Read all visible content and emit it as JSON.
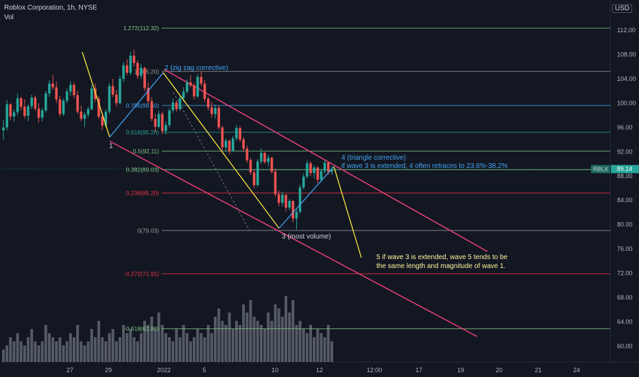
{
  "header": {
    "symbol_title": "Roblox Corporation, 1h, NYSE",
    "volume_label": "Vol",
    "currency": "USD"
  },
  "chart_data": {
    "type": "candlestick",
    "symbol": "RBLX",
    "last_price": "89.14",
    "price_axis": {
      "min": 58,
      "max": 118,
      "ticks": [
        "60.00",
        "64.00",
        "68.00",
        "72.00",
        "76.00",
        "80.00",
        "84.00",
        "88.00",
        "92.00",
        "96.00",
        "100.00",
        "104.00",
        "108.00",
        "112.00"
      ]
    },
    "time_axis": {
      "ticks": [
        "27",
        "29",
        "2022",
        "5",
        "10",
        "12",
        "12:00",
        "17",
        "19",
        "20",
        "21",
        "24"
      ]
    },
    "fib_levels": [
      {
        "label": "1.272(112.32)",
        "price": 112.32,
        "color": "#81c784"
      },
      {
        "label": "1(105.20)",
        "price": 105.2,
        "color": "#9e9e9e"
      },
      {
        "label": "0.786(99.60)",
        "price": 99.6,
        "color": "#42a5f5"
      },
      {
        "label": "0.618(95.20)",
        "price": 95.2,
        "color": "#26a69a"
      },
      {
        "label": "0.5(92.11)",
        "price": 92.11,
        "color": "#81c784"
      },
      {
        "label": "0.382(89.03)",
        "price": 89.03,
        "color": "#81c784"
      },
      {
        "label": "0.236(85.20)",
        "price": 85.2,
        "color": "#f23645"
      },
      {
        "label": "0(79.03)",
        "price": 79.03,
        "color": "#9e9e9e"
      },
      {
        "label": "-0.272(71.91)",
        "price": 71.91,
        "color": "#f23645"
      },
      {
        "label": "-0.618(62.86)",
        "price": 62.86,
        "color": "#81c784"
      }
    ],
    "annotations": {
      "wave1": "1",
      "wave2": "2 (zig zag corrective)",
      "wave3": "3 (most volume)",
      "wave4_line1": "4 (triangle corrective)",
      "wave4_line2": "if wave 3 is extended, 4 often retraces to 23.6%-38.2%",
      "wave5_line1": "5 if wave 3 is extended, wave 5 tends to be",
      "wave5_line2": "the same length and magnitude of wave 1."
    },
    "candles": [
      [
        95.5,
        97.2,
        94.0,
        96.0
      ],
      [
        96.0,
        100.5,
        95.5,
        99.8
      ],
      [
        99.8,
        100.0,
        97.2,
        97.8
      ],
      [
        97.8,
        99.0,
        97.0,
        98.5
      ],
      [
        98.5,
        101.5,
        98.0,
        100.8
      ],
      [
        100.8,
        101.0,
        98.8,
        99.4
      ],
      [
        99.4,
        100.6,
        97.5,
        97.9
      ],
      [
        97.9,
        99.8,
        97.0,
        99.5
      ],
      [
        99.5,
        101.4,
        99.0,
        100.9
      ],
      [
        100.9,
        101.2,
        98.7,
        99.1
      ],
      [
        99.1,
        100.0,
        96.8,
        97.6
      ],
      [
        97.6,
        99.2,
        97.0,
        98.8
      ],
      [
        98.8,
        102.0,
        98.5,
        101.6
      ],
      [
        101.6,
        103.8,
        101.0,
        103.2
      ],
      [
        103.2,
        104.6,
        102.2,
        102.6
      ],
      [
        102.6,
        103.5,
        100.0,
        100.6
      ],
      [
        100.6,
        101.2,
        97.8,
        98.2
      ],
      [
        98.2,
        100.8,
        97.9,
        100.4
      ],
      [
        100.4,
        102.4,
        100.0,
        101.9
      ],
      [
        101.9,
        103.6,
        101.2,
        103.0
      ],
      [
        103.0,
        103.4,
        100.8,
        101.3
      ],
      [
        101.3,
        102.0,
        98.2,
        98.6
      ],
      [
        98.6,
        99.6,
        97.0,
        97.4
      ],
      [
        97.4,
        98.5,
        96.0,
        98.1
      ],
      [
        98.1,
        99.4,
        97.6,
        99.0
      ],
      [
        99.0,
        103.0,
        98.8,
        102.4
      ],
      [
        102.4,
        103.2,
        100.2,
        100.7
      ],
      [
        100.7,
        101.2,
        97.4,
        97.8
      ],
      [
        97.8,
        98.4,
        95.6,
        96.3
      ],
      [
        96.3,
        99.0,
        96.0,
        98.6
      ],
      [
        98.6,
        103.3,
        98.2,
        102.8
      ],
      [
        102.8,
        104.0,
        101.0,
        101.4
      ],
      [
        101.4,
        102.2,
        99.5,
        100.0
      ],
      [
        100.0,
        104.5,
        99.8,
        104.0
      ],
      [
        104.0,
        106.8,
        103.5,
        106.2
      ],
      [
        106.2,
        107.2,
        104.6,
        105.0
      ],
      [
        105.0,
        108.5,
        104.6,
        107.8
      ],
      [
        107.8,
        108.8,
        106.0,
        106.6
      ],
      [
        106.6,
        107.0,
        104.0,
        104.5
      ],
      [
        104.5,
        106.4,
        104.0,
        105.8
      ],
      [
        105.8,
        106.0,
        102.0,
        102.5
      ],
      [
        102.5,
        103.4,
        99.8,
        100.3
      ],
      [
        100.3,
        101.0,
        97.0,
        97.4
      ],
      [
        97.4,
        98.2,
        95.2,
        96.1
      ],
      [
        96.1,
        98.8,
        95.8,
        98.2
      ],
      [
        98.2,
        98.6,
        94.9,
        95.4
      ],
      [
        95.4,
        97.0,
        94.8,
        96.4
      ],
      [
        96.4,
        99.2,
        96.0,
        98.8
      ],
      [
        98.8,
        100.8,
        98.4,
        100.1
      ],
      [
        100.1,
        100.4,
        98.6,
        99.0
      ],
      [
        99.0,
        101.2,
        98.7,
        100.8
      ],
      [
        100.8,
        102.6,
        100.2,
        101.9
      ],
      [
        101.9,
        103.9,
        101.6,
        103.4
      ],
      [
        103.4,
        104.6,
        102.6,
        102.9
      ],
      [
        102.9,
        103.3,
        100.6,
        101.1
      ],
      [
        101.1,
        104.8,
        100.8,
        104.3
      ],
      [
        104.3,
        105.2,
        102.8,
        103.2
      ],
      [
        103.2,
        103.8,
        100.2,
        100.7
      ],
      [
        100.7,
        101.0,
        98.8,
        99.3
      ],
      [
        99.3,
        100.2,
        97.6,
        98.2
      ],
      [
        98.2,
        99.8,
        97.4,
        99.2
      ],
      [
        99.2,
        99.6,
        95.6,
        96.0
      ],
      [
        96.0,
        96.3,
        92.2,
        92.7
      ],
      [
        92.7,
        94.2,
        92.2,
        93.8
      ],
      [
        93.8,
        94.0,
        91.6,
        92.1
      ],
      [
        92.1,
        94.6,
        92.0,
        94.2
      ],
      [
        94.2,
        96.4,
        93.8,
        95.9
      ],
      [
        95.9,
        96.2,
        93.6,
        94.0
      ],
      [
        94.0,
        94.4,
        92.0,
        92.5
      ],
      [
        92.5,
        93.0,
        90.2,
        90.6
      ],
      [
        90.6,
        91.0,
        88.2,
        88.6
      ],
      [
        88.6,
        89.0,
        86.0,
        86.5
      ],
      [
        86.5,
        90.8,
        86.2,
        90.4
      ],
      [
        90.4,
        92.6,
        90.0,
        91.8
      ],
      [
        91.8,
        92.0,
        90.0,
        90.3
      ],
      [
        90.3,
        91.5,
        89.6,
        91.0
      ],
      [
        91.0,
        91.2,
        88.4,
        88.7
      ],
      [
        88.7,
        89.2,
        84.6,
        85.0
      ],
      [
        85.0,
        85.6,
        83.0,
        83.6
      ],
      [
        83.6,
        85.4,
        83.0,
        84.9
      ],
      [
        84.9,
        85.0,
        82.2,
        82.8
      ],
      [
        82.8,
        84.2,
        82.4,
        83.9
      ],
      [
        83.9,
        84.0,
        80.4,
        81.0
      ],
      [
        81.0,
        82.6,
        79.2,
        82.1
      ],
      [
        82.1,
        86.6,
        81.8,
        86.1
      ],
      [
        86.1,
        88.4,
        85.8,
        87.9
      ],
      [
        87.9,
        90.6,
        87.6,
        90.1
      ],
      [
        90.1,
        90.4,
        88.0,
        88.5
      ],
      [
        88.5,
        89.8,
        87.6,
        89.4
      ],
      [
        89.4,
        89.6,
        86.8,
        87.4
      ],
      [
        87.4,
        89.2,
        87.0,
        88.8
      ],
      [
        88.8,
        90.6,
        88.4,
        90.2
      ],
      [
        90.2,
        90.4,
        88.2,
        88.7
      ],
      [
        88.7,
        89.6,
        88.2,
        89.1
      ]
    ],
    "volume": [
      3,
      4,
      6,
      5,
      7,
      5,
      4,
      6,
      8,
      5,
      4,
      5,
      9,
      7,
      6,
      5,
      6,
      4,
      5,
      7,
      6,
      9,
      5,
      4,
      5,
      8,
      6,
      10,
      6,
      5,
      7,
      8,
      5,
      6,
      9,
      7,
      8,
      6,
      5,
      7,
      10,
      9,
      11,
      8,
      12,
      9,
      7,
      6,
      5,
      8,
      6,
      9,
      7,
      5,
      6,
      8,
      7,
      6,
      9,
      7,
      11,
      13,
      10,
      9,
      12,
      8,
      10,
      9,
      14,
      12,
      15,
      11,
      10,
      9,
      8,
      12,
      10,
      14,
      13,
      11,
      16,
      12,
      15,
      9,
      10,
      8,
      7,
      9,
      6,
      8,
      7,
      6,
      9,
      5
    ]
  }
}
